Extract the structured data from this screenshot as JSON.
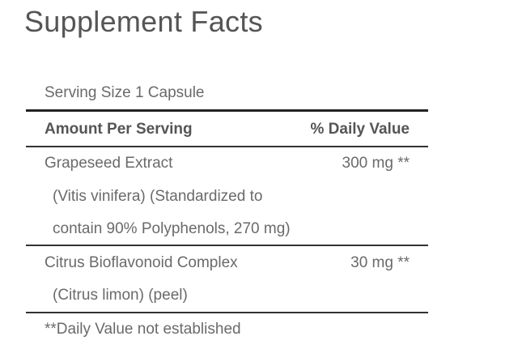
{
  "title": "Supplement Facts",
  "serving_size": "Serving Size 1 Capsule",
  "header": {
    "amount": "Amount Per Serving",
    "daily_value": "% Daily Value"
  },
  "ingredients": [
    {
      "name": "Grapeseed Extract",
      "detail_lines": [
        "(Vitis vinifera) (Standardized to",
        "contain 90% Polyphenols, 270 mg)"
      ],
      "amount": "300 mg **"
    },
    {
      "name": "Citrus Bioflavonoid Complex",
      "detail_lines": [
        "(Citrus limon) (peel)"
      ],
      "amount": "30 mg **"
    }
  ],
  "footnote": "**Daily Value not established"
}
